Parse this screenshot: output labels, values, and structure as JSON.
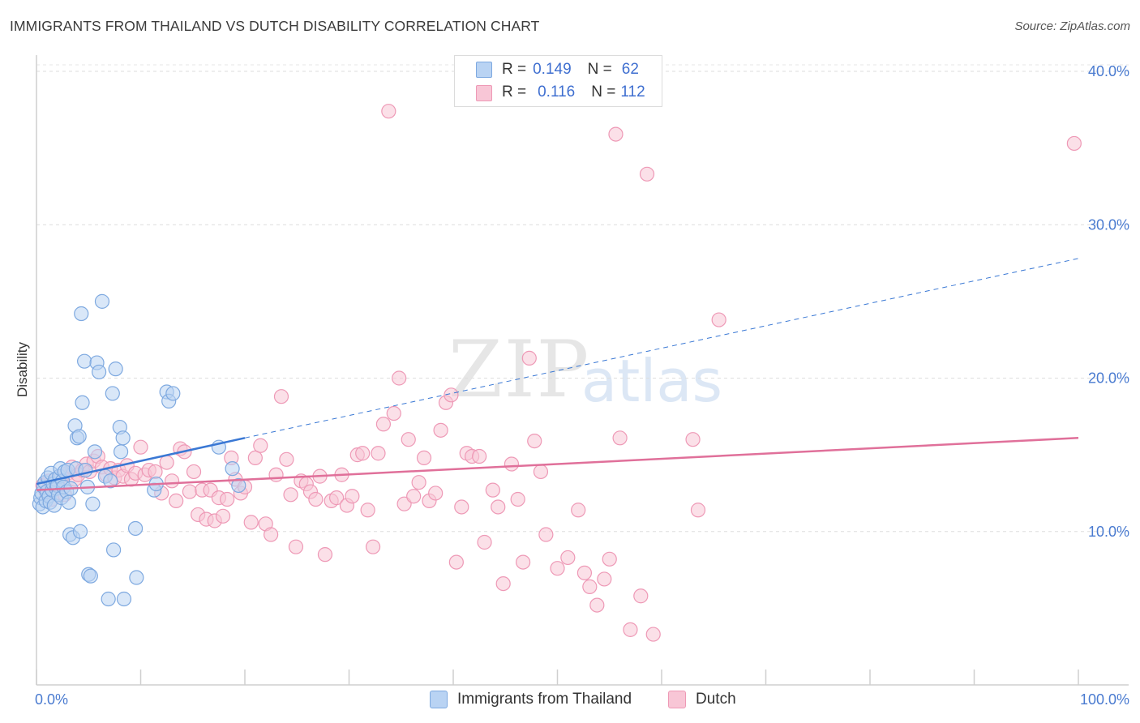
{
  "header": {
    "title": "IMMIGRANTS FROM THAILAND VS DUTCH DISABILITY CORRELATION CHART",
    "source": "Source: ZipAtlas.com"
  },
  "watermark": {
    "zip": "ZIP",
    "atlas": "atlas"
  },
  "legend": {
    "rows": [
      {
        "r_label": "R =",
        "r_value": "0.149",
        "n_label": "N =",
        "n_value": "62"
      },
      {
        "r_label": "R =",
        "r_value": "0.116",
        "n_label": "N =",
        "n_value": "112"
      }
    ]
  },
  "colors": {
    "blue_fill": "#b9d3f3",
    "blue_stroke": "#7ea9e0",
    "blue_line": "#3a78d4",
    "pink_fill": "#f8c6d6",
    "pink_stroke": "#ee99b6",
    "pink_line": "#e0709a",
    "axis_label": "#4a7bd0"
  },
  "chart_data": {
    "type": "scatter",
    "title": "IMMIGRANTS FROM THAILAND VS DUTCH DISABILITY CORRELATION CHART",
    "xlabel": "",
    "ylabel": "Disability",
    "xlim": [
      0,
      100
    ],
    "ylim": [
      0,
      40
    ],
    "x_tick_labels": [
      "0.0%",
      "100.0%"
    ],
    "y_ticks": [
      10,
      20,
      30,
      40
    ],
    "y_tick_labels": [
      "10.0%",
      "20.0%",
      "30.0%",
      "40.0%"
    ],
    "grid": true,
    "legend_position": "top-center",
    "series": [
      {
        "name": "Immigrants from Thailand",
        "r": 0.149,
        "n": 62,
        "trend": {
          "x": [
            0,
            20
          ],
          "y": [
            13.1,
            16.1
          ],
          "dashed_to": [
            100,
            27.8
          ]
        },
        "points": [
          [
            0.3,
            11.8
          ],
          [
            0.4,
            12.2
          ],
          [
            0.5,
            12.5
          ],
          [
            0.6,
            11.6
          ],
          [
            0.7,
            12.9
          ],
          [
            0.8,
            13.2
          ],
          [
            0.9,
            12.0
          ],
          [
            1.0,
            12.6
          ],
          [
            1.1,
            13.5
          ],
          [
            1.2,
            12.3
          ],
          [
            1.3,
            11.9
          ],
          [
            1.4,
            13.8
          ],
          [
            1.5,
            12.7
          ],
          [
            1.6,
            13.1
          ],
          [
            1.7,
            11.7
          ],
          [
            1.8,
            13.4
          ],
          [
            1.9,
            12.8
          ],
          [
            2.0,
            13.0
          ],
          [
            2.1,
            12.4
          ],
          [
            2.2,
            13.6
          ],
          [
            2.3,
            14.1
          ],
          [
            2.4,
            12.2
          ],
          [
            2.5,
            13.3
          ],
          [
            2.6,
            12.9
          ],
          [
            2.7,
            13.9
          ],
          [
            2.9,
            12.6
          ],
          [
            3.0,
            14.0
          ],
          [
            3.1,
            11.9
          ],
          [
            3.2,
            9.8
          ],
          [
            3.3,
            12.8
          ],
          [
            3.5,
            9.6
          ],
          [
            3.7,
            16.9
          ],
          [
            3.8,
            14.1
          ],
          [
            3.9,
            16.1
          ],
          [
            4.1,
            16.2
          ],
          [
            4.2,
            10.0
          ],
          [
            4.3,
            24.2
          ],
          [
            4.4,
            18.4
          ],
          [
            4.6,
            21.1
          ],
          [
            4.7,
            14.0
          ],
          [
            4.9,
            12.9
          ],
          [
            5.0,
            7.2
          ],
          [
            5.2,
            7.1
          ],
          [
            5.4,
            11.8
          ],
          [
            5.6,
            15.2
          ],
          [
            5.8,
            21.0
          ],
          [
            6.0,
            20.4
          ],
          [
            6.3,
            25.0
          ],
          [
            6.6,
            13.6
          ],
          [
            6.9,
            5.6
          ],
          [
            7.1,
            13.3
          ],
          [
            7.3,
            19.0
          ],
          [
            7.4,
            8.8
          ],
          [
            7.6,
            20.6
          ],
          [
            8.0,
            16.8
          ],
          [
            8.1,
            15.2
          ],
          [
            8.3,
            16.1
          ],
          [
            8.4,
            5.6
          ],
          [
            9.5,
            10.2
          ],
          [
            9.6,
            7.0
          ],
          [
            11.3,
            12.7
          ],
          [
            11.5,
            13.1
          ],
          [
            12.5,
            19.1
          ],
          [
            12.7,
            18.5
          ],
          [
            13.1,
            19.0
          ],
          [
            17.5,
            15.5
          ],
          [
            18.8,
            14.1
          ],
          [
            19.4,
            13.0
          ]
        ]
      },
      {
        "name": "Dutch",
        "r": 0.116,
        "n": 112,
        "trend": {
          "x": [
            0,
            100
          ],
          "y": [
            12.7,
            16.1
          ]
        },
        "points": [
          [
            0.6,
            13.0
          ],
          [
            0.9,
            12.6
          ],
          [
            1.2,
            13.3
          ],
          [
            1.5,
            12.1
          ],
          [
            1.8,
            13.0
          ],
          [
            2.1,
            12.9
          ],
          [
            2.4,
            13.6
          ],
          [
            2.7,
            12.4
          ],
          [
            3.0,
            13.8
          ],
          [
            3.4,
            14.2
          ],
          [
            3.7,
            13.4
          ],
          [
            4.0,
            13.7
          ],
          [
            4.4,
            14.0
          ],
          [
            4.8,
            14.4
          ],
          [
            5.1,
            13.9
          ],
          [
            5.5,
            14.6
          ],
          [
            5.9,
            14.9
          ],
          [
            6.3,
            14.2
          ],
          [
            6.7,
            13.7
          ],
          [
            7.1,
            14.1
          ],
          [
            7.5,
            13.5
          ],
          [
            7.9,
            14.0
          ],
          [
            8.3,
            13.6
          ],
          [
            8.7,
            14.3
          ],
          [
            9.1,
            13.4
          ],
          [
            9.5,
            13.8
          ],
          [
            10.0,
            15.5
          ],
          [
            10.4,
            13.7
          ],
          [
            10.8,
            14.0
          ],
          [
            11.4,
            13.9
          ],
          [
            12.0,
            12.5
          ],
          [
            12.5,
            14.5
          ],
          [
            13.0,
            13.3
          ],
          [
            13.4,
            12.0
          ],
          [
            13.8,
            15.4
          ],
          [
            14.2,
            15.2
          ],
          [
            14.7,
            12.6
          ],
          [
            15.1,
            13.9
          ],
          [
            15.5,
            11.1
          ],
          [
            15.9,
            12.7
          ],
          [
            16.3,
            10.8
          ],
          [
            16.7,
            12.7
          ],
          [
            17.1,
            10.7
          ],
          [
            17.5,
            12.2
          ],
          [
            17.9,
            11.0
          ],
          [
            18.3,
            12.1
          ],
          [
            18.7,
            14.8
          ],
          [
            19.1,
            13.4
          ],
          [
            19.6,
            12.5
          ],
          [
            20.0,
            12.9
          ],
          [
            20.6,
            10.6
          ],
          [
            21.0,
            14.8
          ],
          [
            21.5,
            15.6
          ],
          [
            22.0,
            10.5
          ],
          [
            22.5,
            9.8
          ],
          [
            23.0,
            13.7
          ],
          [
            23.5,
            18.8
          ],
          [
            24.0,
            14.7
          ],
          [
            24.4,
            12.4
          ],
          [
            24.9,
            9.0
          ],
          [
            25.4,
            13.3
          ],
          [
            25.9,
            13.1
          ],
          [
            26.3,
            12.6
          ],
          [
            26.8,
            12.1
          ],
          [
            27.2,
            13.6
          ],
          [
            27.7,
            8.5
          ],
          [
            28.3,
            12.0
          ],
          [
            28.8,
            12.2
          ],
          [
            29.3,
            13.7
          ],
          [
            29.8,
            11.7
          ],
          [
            30.3,
            12.3
          ],
          [
            30.8,
            15.0
          ],
          [
            31.3,
            15.1
          ],
          [
            31.8,
            11.4
          ],
          [
            32.3,
            9.0
          ],
          [
            32.8,
            15.1
          ],
          [
            33.3,
            17.0
          ],
          [
            33.8,
            37.4
          ],
          [
            34.3,
            17.7
          ],
          [
            34.8,
            20.0
          ],
          [
            35.3,
            11.8
          ],
          [
            35.7,
            16.0
          ],
          [
            36.2,
            12.3
          ],
          [
            36.7,
            13.2
          ],
          [
            37.2,
            14.8
          ],
          [
            37.7,
            12.0
          ],
          [
            38.3,
            12.5
          ],
          [
            38.8,
            16.6
          ],
          [
            39.3,
            18.4
          ],
          [
            39.8,
            18.9
          ],
          [
            40.3,
            8.0
          ],
          [
            40.8,
            11.6
          ],
          [
            41.3,
            15.1
          ],
          [
            41.8,
            14.9
          ],
          [
            42.5,
            14.9
          ],
          [
            43.0,
            9.3
          ],
          [
            43.8,
            12.7
          ],
          [
            44.3,
            11.6
          ],
          [
            44.8,
            6.6
          ],
          [
            45.6,
            14.4
          ],
          [
            46.2,
            12.1
          ],
          [
            46.7,
            8.0
          ],
          [
            47.3,
            21.3
          ],
          [
            47.8,
            15.9
          ],
          [
            48.4,
            13.9
          ],
          [
            48.9,
            9.8
          ],
          [
            50.0,
            7.6
          ],
          [
            51.0,
            8.3
          ],
          [
            52.0,
            11.4
          ],
          [
            52.6,
            7.3
          ],
          [
            53.1,
            6.4
          ],
          [
            53.8,
            5.2
          ],
          [
            54.5,
            6.9
          ],
          [
            55.0,
            8.2
          ],
          [
            55.6,
            35.9
          ],
          [
            56.0,
            16.1
          ],
          [
            57.0,
            3.6
          ],
          [
            58.0,
            5.8
          ],
          [
            58.6,
            33.3
          ],
          [
            59.2,
            3.3
          ],
          [
            63.0,
            16.0
          ],
          [
            63.5,
            11.4
          ],
          [
            65.5,
            23.8
          ],
          [
            99.6,
            35.3
          ]
        ]
      }
    ]
  },
  "bottom_legend": {
    "items": [
      {
        "label": "Immigrants from Thailand"
      },
      {
        "label": "Dutch"
      }
    ]
  }
}
